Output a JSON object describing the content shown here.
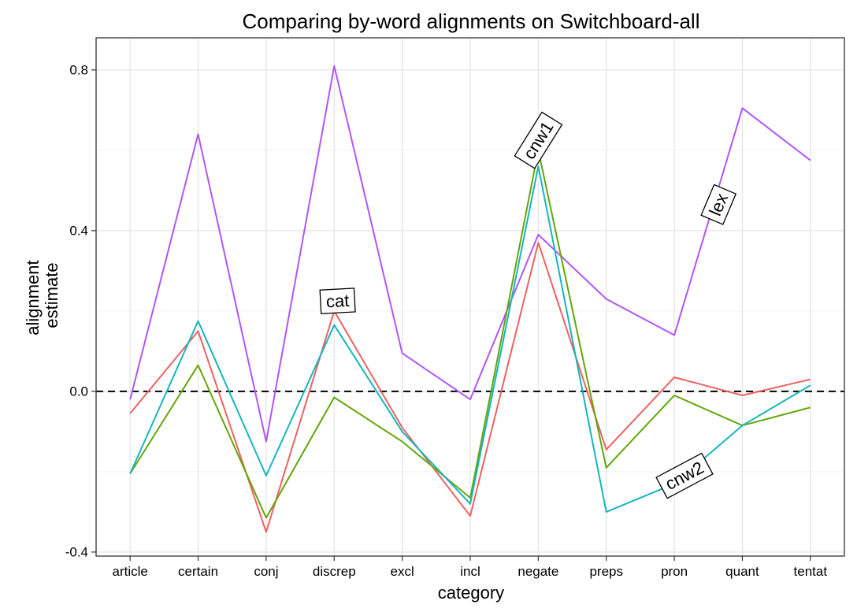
{
  "chart_data": {
    "type": "line",
    "title": "Comparing by-word alignments on Switchboard-all",
    "xlabel": "category",
    "ylabel": [
      "alignment",
      "estimate"
    ],
    "categories": [
      "article",
      "certain",
      "conj",
      "discrep",
      "excl",
      "incl",
      "negate",
      "preps",
      "pron",
      "quant",
      "tentat"
    ],
    "ylim": [
      -0.41,
      0.88
    ],
    "yticks": [
      -0.4,
      0.0,
      0.4,
      0.8
    ],
    "ytick_labels": [
      "-0.4",
      "0.0",
      "0.4",
      "0.8"
    ],
    "grid": true,
    "reference_line": {
      "y": 0.0,
      "style": "dashed",
      "color": "#000000"
    },
    "series": [
      {
        "name": "lex",
        "color": "#b156f6",
        "values": [
          -0.02,
          0.64,
          -0.125,
          0.81,
          0.095,
          -0.02,
          0.39,
          0.23,
          0.14,
          0.705,
          0.575
        ]
      },
      {
        "name": "cat",
        "color": "#ee6162",
        "values": [
          -0.055,
          0.15,
          -0.35,
          0.2,
          -0.09,
          -0.31,
          0.37,
          -0.145,
          0.035,
          -0.01,
          0.03
        ]
      },
      {
        "name": "cnw1",
        "color": "#64a50a",
        "values": [
          -0.205,
          0.065,
          -0.315,
          -0.015,
          -0.125,
          -0.265,
          0.6,
          -0.19,
          -0.01,
          -0.085,
          -0.04
        ]
      },
      {
        "name": "cnw2",
        "color": "#15b6bb",
        "values": [
          -0.205,
          0.175,
          -0.21,
          0.165,
          -0.1,
          -0.28,
          0.56,
          -0.3,
          -0.23,
          -0.085,
          0.015
        ]
      }
    ],
    "annotations": [
      {
        "text": "cnw1",
        "x": 6.0,
        "y": 0.625,
        "angle": -58
      },
      {
        "text": "lex",
        "x": 8.65,
        "y": 0.465,
        "angle": -67
      },
      {
        "text": "cat",
        "x": 3.05,
        "y": 0.225,
        "angle": -3
      },
      {
        "text": "cnw2",
        "x": 8.15,
        "y": -0.21,
        "angle": -28
      }
    ]
  }
}
